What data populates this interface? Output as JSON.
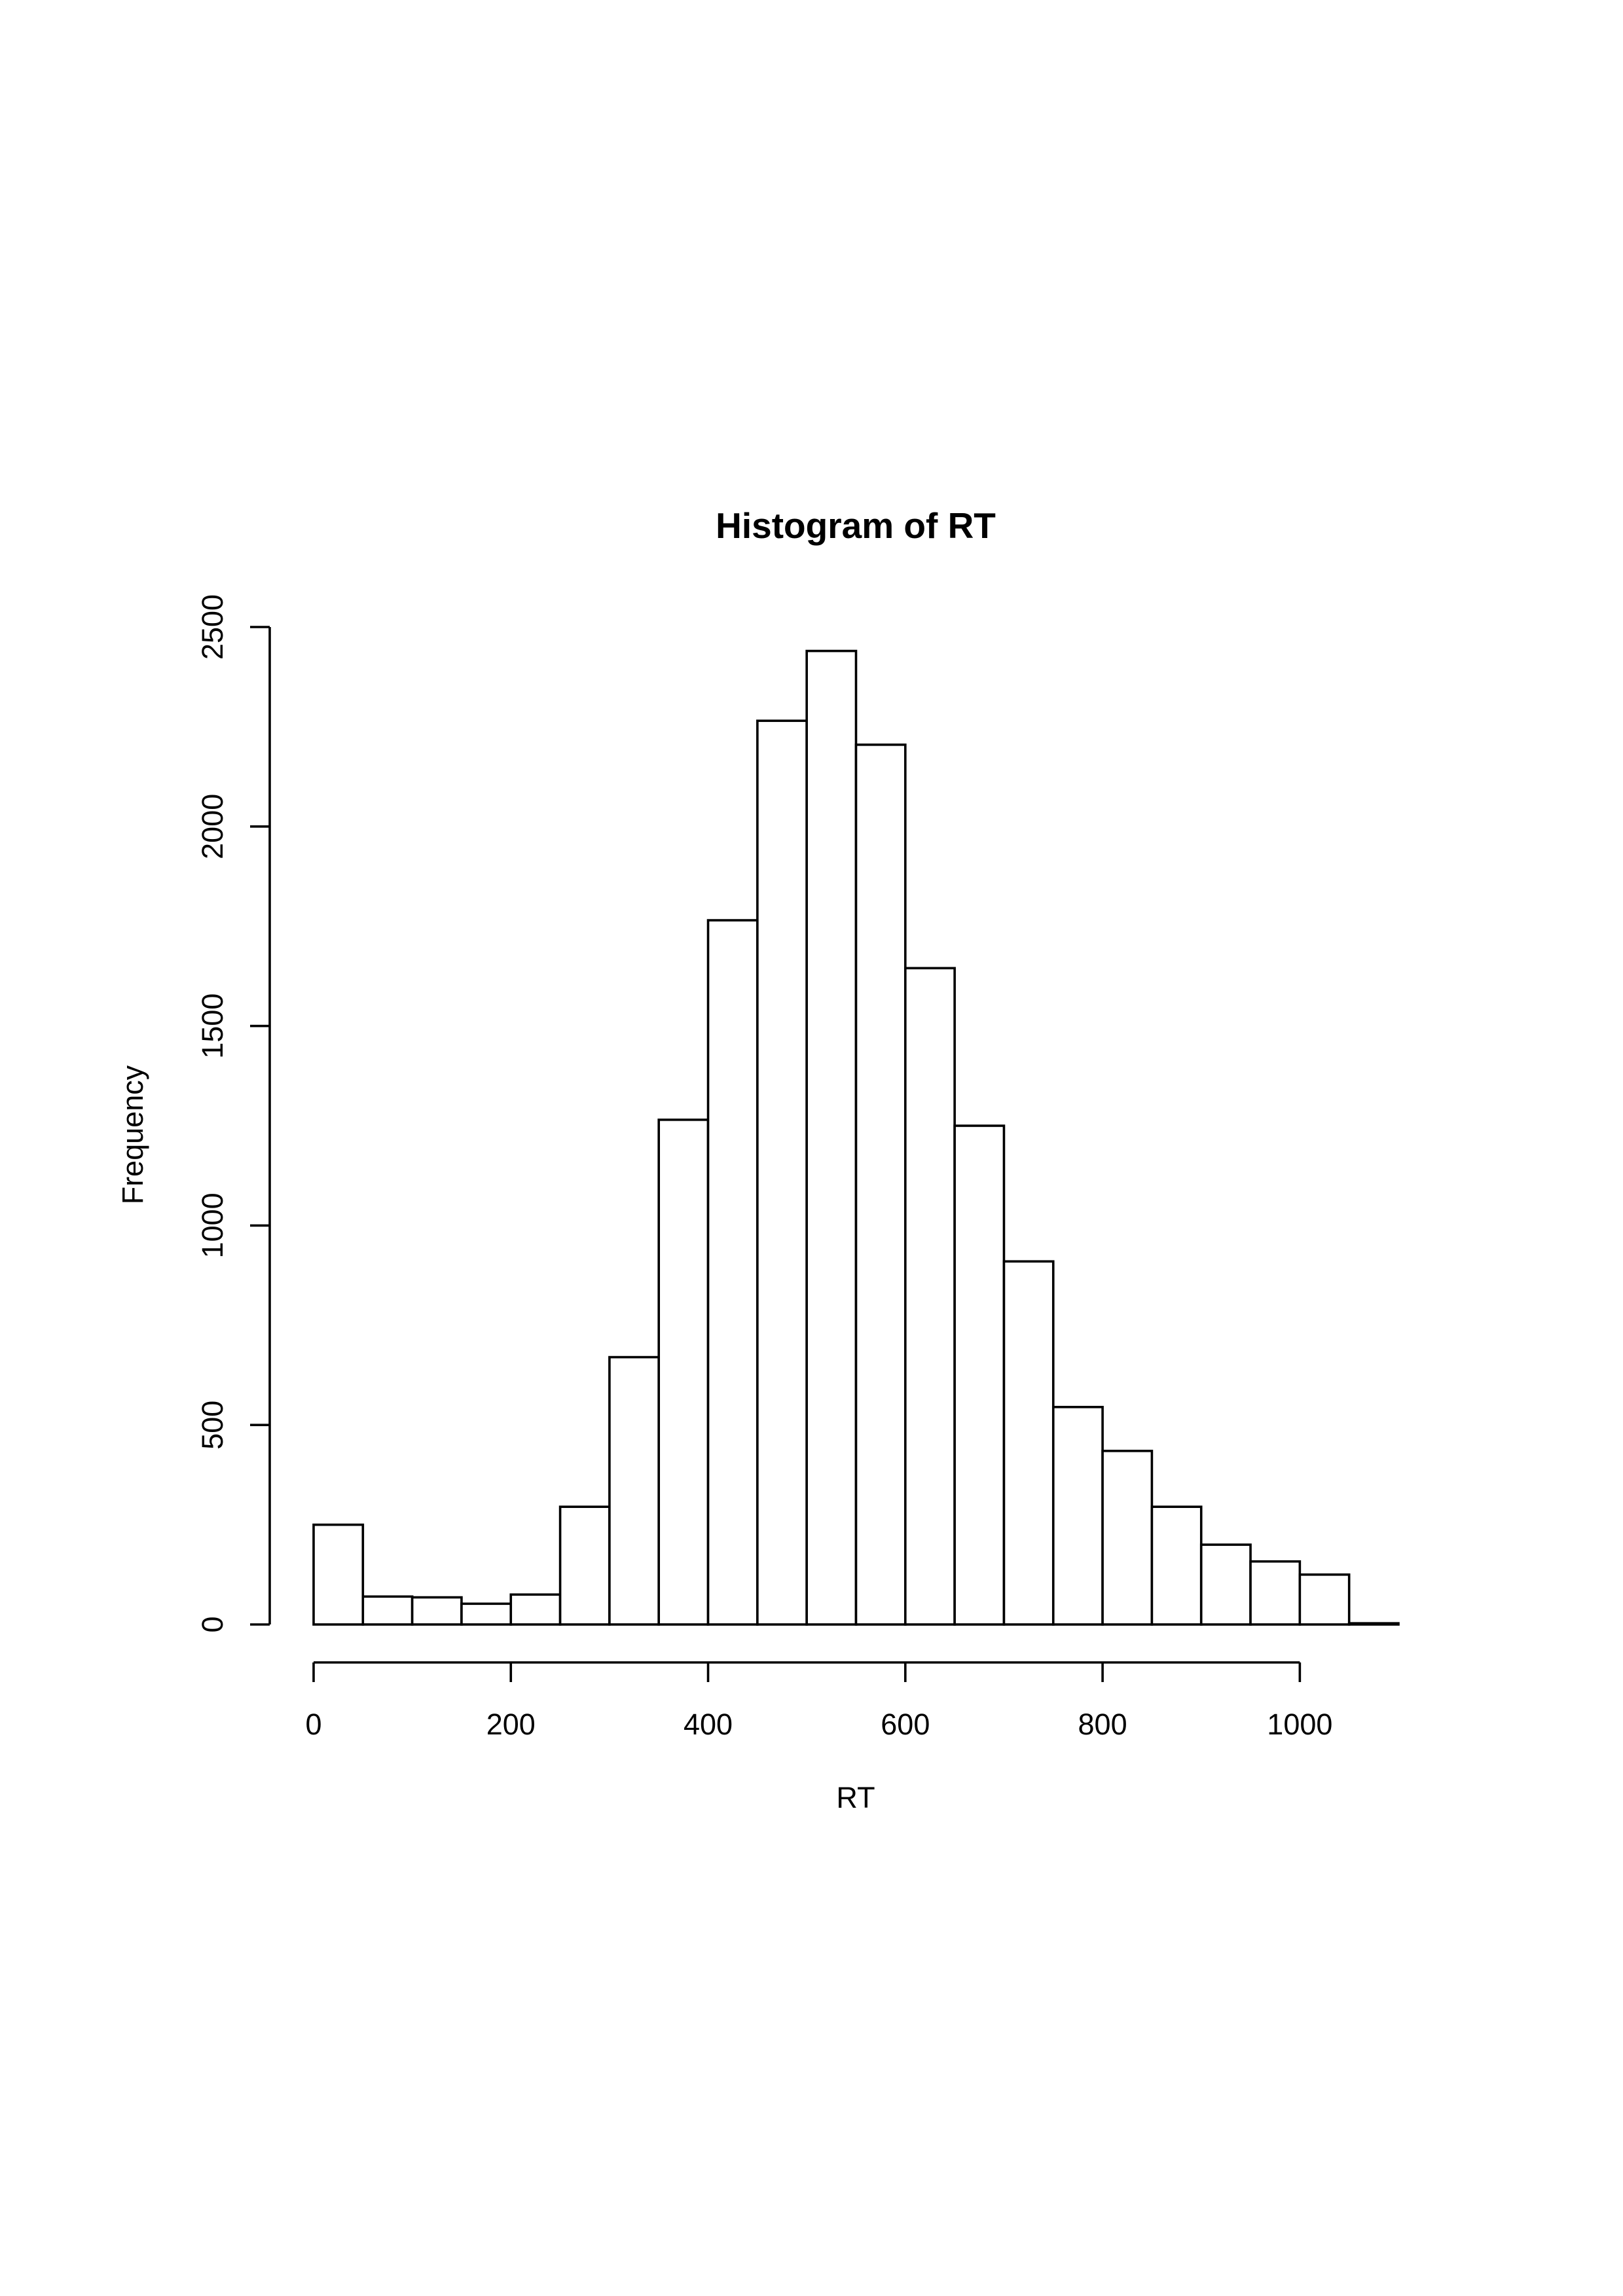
{
  "chart_data": {
    "type": "bar",
    "title": "Histogram of RT",
    "xlabel": "RT",
    "ylabel": "Frequency",
    "bin_width": 50,
    "bins": [
      {
        "start": 0,
        "end": 50,
        "value": 250
      },
      {
        "start": 50,
        "end": 100,
        "value": 70
      },
      {
        "start": 100,
        "end": 150,
        "value": 68
      },
      {
        "start": 150,
        "end": 200,
        "value": 52
      },
      {
        "start": 200,
        "end": 250,
        "value": 75
      },
      {
        "start": 250,
        "end": 300,
        "value": 295
      },
      {
        "start": 300,
        "end": 350,
        "value": 670
      },
      {
        "start": 350,
        "end": 400,
        "value": 1265
      },
      {
        "start": 400,
        "end": 450,
        "value": 1765
      },
      {
        "start": 450,
        "end": 500,
        "value": 2265
      },
      {
        "start": 500,
        "end": 550,
        "value": 2440
      },
      {
        "start": 550,
        "end": 600,
        "value": 2205
      },
      {
        "start": 600,
        "end": 650,
        "value": 1645
      },
      {
        "start": 650,
        "end": 700,
        "value": 1250
      },
      {
        "start": 700,
        "end": 750,
        "value": 910
      },
      {
        "start": 750,
        "end": 800,
        "value": 545
      },
      {
        "start": 800,
        "end": 850,
        "value": 435
      },
      {
        "start": 850,
        "end": 900,
        "value": 295
      },
      {
        "start": 900,
        "end": 950,
        "value": 200
      },
      {
        "start": 950,
        "end": 1000,
        "value": 158
      },
      {
        "start": 1000,
        "end": 1050,
        "value": 125
      },
      {
        "start": 1050,
        "end": 1100,
        "value": 3
      }
    ],
    "xlim": [
      0,
      1100
    ],
    "ylim": [
      0,
      2500
    ],
    "x_ticks": [
      0,
      200,
      400,
      600,
      800,
      1000
    ],
    "y_ticks": [
      0,
      500,
      1000,
      1500,
      2000,
      2500
    ],
    "grid": false,
    "legend": "none",
    "colors": {
      "bar_fill": "#ffffff",
      "bar_stroke": "#000000"
    }
  }
}
